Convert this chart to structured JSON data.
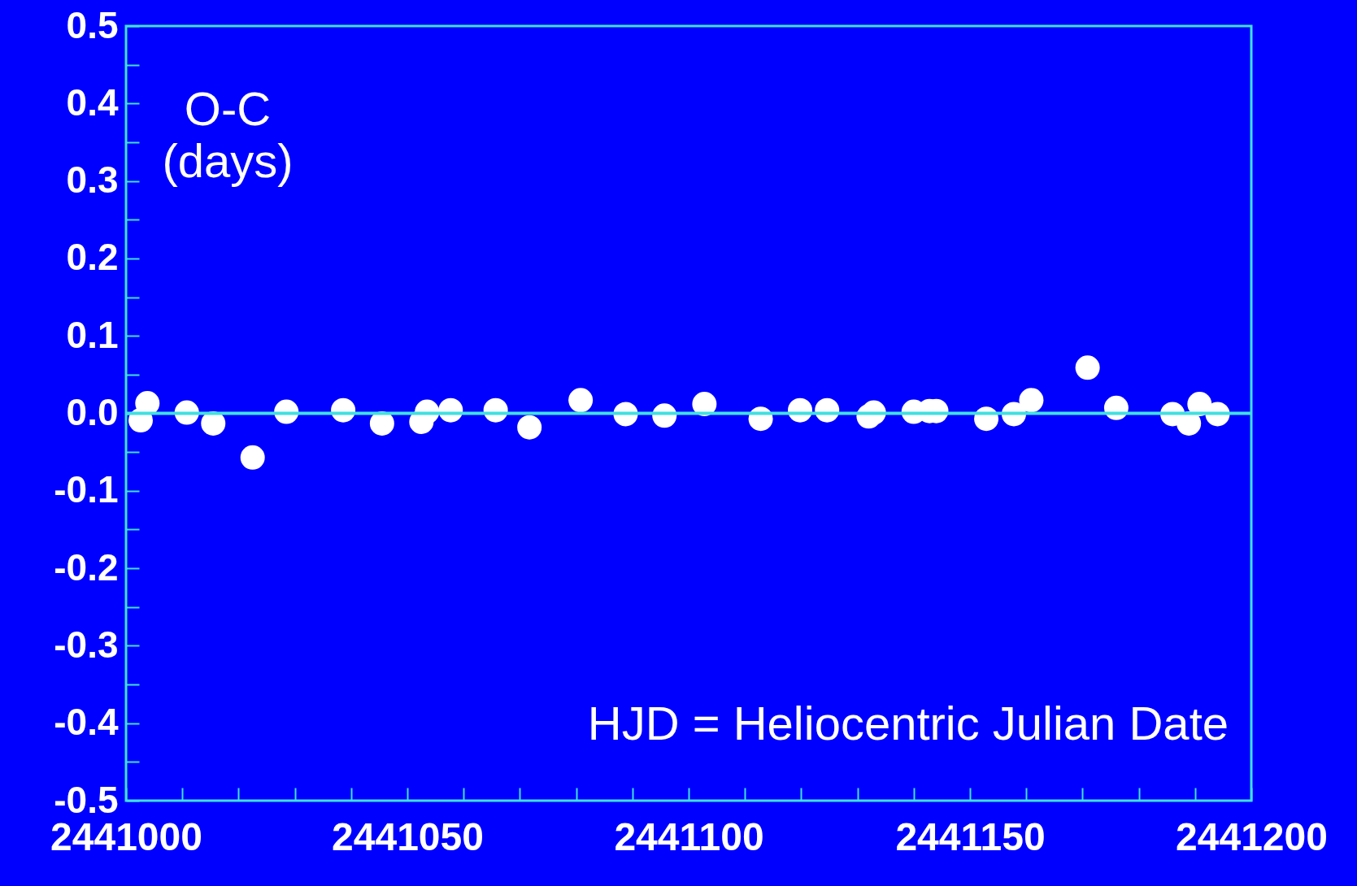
{
  "chart_data": {
    "type": "scatter",
    "ylabel": "O-C (days)",
    "xlabel": "HJD = Heliocentric Julian Date",
    "x": [
      2441002.6,
      2441003.8,
      2441010.8,
      2441015.5,
      2441022.5,
      2441028.5,
      2441038.6,
      2441045.5,
      2441052.5,
      2441053.5,
      2441057.7,
      2441065.7,
      2441071.7,
      2441080.8,
      2441088.8,
      2441095.7,
      2441102.8,
      2441112.8,
      2441119.8,
      2441124.6,
      2441132,
      2441132.9,
      2441140,
      2441142.8,
      2441144,
      2441152.9,
      2441157.8,
      2441160.9,
      2441170.9,
      2441176,
      2441186,
      2441188.9,
      2441190.8,
      2441194
    ],
    "series": [
      {
        "color": "#ffffff",
        "values": [
          -0.009,
          0.013,
          0.001,
          -0.013,
          -0.057,
          0.002,
          0.004,
          -0.013,
          -0.011,
          0.002,
          0.004,
          0.004,
          -0.018,
          0.017,
          -0.001,
          -0.003,
          0.012,
          -0.007,
          0.004,
          0.004,
          -0.004,
          0.001,
          0.002,
          0.003,
          0.003,
          -0.007,
          -0.001,
          0.017,
          0.059,
          0.007,
          -0.001,
          -0.013,
          0.012,
          -0.001
        ]
      }
    ],
    "xlim": [
      2441000,
      2441200
    ],
    "xticks": [
      2441000,
      {
        "value": 2441010,
        "label": null
      },
      {
        "value": 2441020,
        "label": null
      },
      {
        "value": 2441030,
        "label": null
      },
      {
        "value": 2441040,
        "label": null
      },
      2441050,
      {
        "value": 2441060,
        "label": null
      },
      {
        "value": 2441070,
        "label": null
      },
      {
        "value": 2441080,
        "label": null
      },
      {
        "value": 2441090,
        "label": null
      },
      2441100,
      {
        "value": 2441110,
        "label": null
      },
      {
        "value": 2441120,
        "label": null
      },
      {
        "value": 2441130,
        "label": null
      },
      {
        "value": 2441140,
        "label": null
      },
      2441150,
      {
        "value": 2441160,
        "label": null
      },
      {
        "value": 2441170,
        "label": null
      },
      {
        "value": 2441180,
        "label": null
      },
      {
        "value": 2441190,
        "label": null
      },
      2441200
    ],
    "ylim": [
      -0.5,
      0.5
    ],
    "yticks": [
      {
        "value": -0.5,
        "label": "-0.5"
      },
      {
        "value": -0.45,
        "label": null
      },
      {
        "value": -0.4,
        "label": "-0.4"
      },
      {
        "value": -0.35,
        "label": null
      },
      {
        "value": -0.3,
        "label": "-0.3"
      },
      {
        "value": -0.25,
        "label": null
      },
      {
        "value": -0.2,
        "label": "-0.2"
      },
      {
        "value": -0.15,
        "label": null
      },
      {
        "value": -0.1,
        "label": "-0.1"
      },
      {
        "value": -0.05,
        "label": null
      },
      {
        "value": 0,
        "label": "0.0"
      },
      {
        "value": 0.05,
        "label": null
      },
      {
        "value": 0.1,
        "label": "0.1"
      },
      {
        "value": 0.15,
        "label": null
      },
      {
        "value": 0.2,
        "label": "0.2"
      },
      {
        "value": 0.25,
        "label": null
      },
      {
        "value": 0.3,
        "label": "0.3"
      },
      {
        "value": 0.35,
        "label": null
      },
      {
        "value": 0.4,
        "label": "0.4"
      },
      {
        "value": 0.45,
        "label": null
      },
      {
        "value": 0.5,
        "label": "0.5"
      }
    ],
    "ref_lines": [
      {
        "axis": "y",
        "value": 0,
        "color": "#40e0e0"
      }
    ],
    "grid": false,
    "marker": "circle"
  }
}
